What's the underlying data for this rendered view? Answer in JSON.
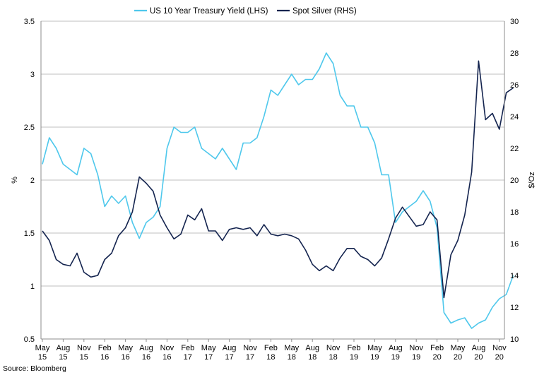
{
  "chart_data": {
    "type": "line",
    "title": "",
    "source": "Source: Bloomberg",
    "ylabel_left": "%",
    "ylabel_right": "$/Oz",
    "ylim_left": [
      0.5,
      3.5
    ],
    "yticks_left": [
      "0.5",
      "1",
      "1.5",
      "2",
      "2.5",
      "3",
      "3.5"
    ],
    "ylim_right": [
      10,
      30
    ],
    "yticks_right": [
      "10",
      "12",
      "14",
      "16",
      "18",
      "20",
      "22",
      "24",
      "26",
      "28",
      "30"
    ],
    "grid": true,
    "legend_position": "top",
    "x_ticks": [
      {
        "month": "May",
        "year": "15"
      },
      {
        "month": "Aug",
        "year": "15"
      },
      {
        "month": "Nov",
        "year": "15"
      },
      {
        "month": "Feb",
        "year": "16"
      },
      {
        "month": "May",
        "year": "16"
      },
      {
        "month": "Aug",
        "year": "16"
      },
      {
        "month": "Nov",
        "year": "16"
      },
      {
        "month": "Feb",
        "year": "17"
      },
      {
        "month": "May",
        "year": "17"
      },
      {
        "month": "Aug",
        "year": "17"
      },
      {
        "month": "Nov",
        "year": "17"
      },
      {
        "month": "Feb",
        "year": "18"
      },
      {
        "month": "May",
        "year": "18"
      },
      {
        "month": "Aug",
        "year": "18"
      },
      {
        "month": "Nov",
        "year": "18"
      },
      {
        "month": "Feb",
        "year": "19"
      },
      {
        "month": "May",
        "year": "19"
      },
      {
        "month": "Aug",
        "year": "19"
      },
      {
        "month": "Nov",
        "year": "19"
      },
      {
        "month": "Feb",
        "year": "20"
      },
      {
        "month": "May",
        "year": "20"
      },
      {
        "month": "Aug",
        "year": "20"
      },
      {
        "month": "Nov",
        "year": "20"
      }
    ],
    "series": [
      {
        "name": "US 10 Year Treasury Yield (LHS)",
        "axis": "left",
        "color": "#4fc8ec",
        "x": [
          "2015-05",
          "2015-06",
          "2015-07",
          "2015-08",
          "2015-09",
          "2015-10",
          "2015-11",
          "2015-12",
          "2016-01",
          "2016-02",
          "2016-03",
          "2016-04",
          "2016-05",
          "2016-06",
          "2016-07",
          "2016-08",
          "2016-09",
          "2016-10",
          "2016-11",
          "2016-12",
          "2017-01",
          "2017-02",
          "2017-03",
          "2017-04",
          "2017-05",
          "2017-06",
          "2017-07",
          "2017-08",
          "2017-09",
          "2017-10",
          "2017-11",
          "2017-12",
          "2018-01",
          "2018-02",
          "2018-03",
          "2018-04",
          "2018-05",
          "2018-06",
          "2018-07",
          "2018-08",
          "2018-09",
          "2018-10",
          "2018-11",
          "2018-12",
          "2019-01",
          "2019-02",
          "2019-03",
          "2019-04",
          "2019-05",
          "2019-06",
          "2019-07",
          "2019-08",
          "2019-09",
          "2019-10",
          "2019-11",
          "2019-12",
          "2020-01",
          "2020-02",
          "2020-03",
          "2020-04",
          "2020-05",
          "2020-06",
          "2020-07",
          "2020-08",
          "2020-09",
          "2020-10",
          "2020-11",
          "2020-12",
          "2021-01"
        ],
        "values": [
          2.15,
          2.4,
          2.3,
          2.15,
          2.1,
          2.05,
          2.3,
          2.25,
          2.05,
          1.75,
          1.85,
          1.78,
          1.85,
          1.6,
          1.45,
          1.6,
          1.65,
          1.75,
          2.3,
          2.5,
          2.45,
          2.45,
          2.5,
          2.3,
          2.25,
          2.2,
          2.3,
          2.2,
          2.1,
          2.35,
          2.35,
          2.4,
          2.6,
          2.85,
          2.8,
          2.9,
          3.0,
          2.9,
          2.95,
          2.95,
          3.05,
          3.2,
          3.1,
          2.8,
          2.7,
          2.7,
          2.5,
          2.5,
          2.35,
          2.05,
          2.05,
          1.6,
          1.7,
          1.75,
          1.8,
          1.9,
          1.8,
          1.55,
          0.75,
          0.65,
          0.68,
          0.7,
          0.6,
          0.65,
          0.68,
          0.8,
          0.88,
          0.92,
          1.1
        ]
      },
      {
        "name": "Spot Silver (RHS)",
        "axis": "right",
        "color": "#14244f",
        "x": [
          "2015-05",
          "2015-06",
          "2015-07",
          "2015-08",
          "2015-09",
          "2015-10",
          "2015-11",
          "2015-12",
          "2016-01",
          "2016-02",
          "2016-03",
          "2016-04",
          "2016-05",
          "2016-06",
          "2016-07",
          "2016-08",
          "2016-09",
          "2016-10",
          "2016-11",
          "2016-12",
          "2017-01",
          "2017-02",
          "2017-03",
          "2017-04",
          "2017-05",
          "2017-06",
          "2017-07",
          "2017-08",
          "2017-09",
          "2017-10",
          "2017-11",
          "2017-12",
          "2018-01",
          "2018-02",
          "2018-03",
          "2018-04",
          "2018-05",
          "2018-06",
          "2018-07",
          "2018-08",
          "2018-09",
          "2018-10",
          "2018-11",
          "2018-12",
          "2019-01",
          "2019-02",
          "2019-03",
          "2019-04",
          "2019-05",
          "2019-06",
          "2019-07",
          "2019-08",
          "2019-09",
          "2019-10",
          "2019-11",
          "2019-12",
          "2020-01",
          "2020-02",
          "2020-03",
          "2020-04",
          "2020-05",
          "2020-06",
          "2020-07",
          "2020-08",
          "2020-09",
          "2020-10",
          "2020-11",
          "2020-12",
          "2021-01"
        ],
        "values": [
          16.8,
          16.2,
          15.0,
          14.7,
          14.6,
          15.4,
          14.2,
          13.9,
          14.0,
          15.0,
          15.4,
          16.5,
          17.0,
          18.0,
          20.2,
          19.8,
          19.3,
          17.8,
          17.0,
          16.3,
          16.6,
          17.8,
          17.5,
          18.2,
          16.8,
          16.8,
          16.2,
          16.9,
          17.0,
          16.9,
          17.0,
          16.5,
          17.2,
          16.6,
          16.5,
          16.6,
          16.5,
          16.3,
          15.6,
          14.7,
          14.3,
          14.6,
          14.3,
          15.1,
          15.7,
          15.7,
          15.2,
          15.0,
          14.6,
          15.1,
          16.3,
          17.6,
          18.3,
          17.7,
          17.1,
          17.2,
          18.0,
          17.5,
          12.6,
          15.3,
          16.2,
          17.8,
          20.5,
          27.5,
          23.8,
          24.2,
          23.2,
          25.5,
          25.8
        ]
      }
    ]
  }
}
